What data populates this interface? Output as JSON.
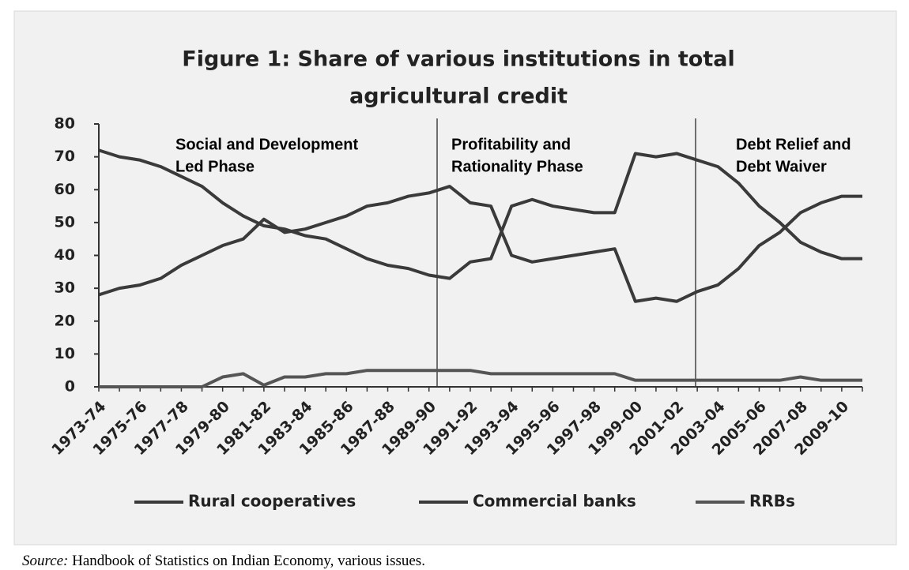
{
  "chart_data": {
    "type": "line",
    "title": [
      "Figure 1: Share of various institutions in total",
      "agricultural credit"
    ],
    "categories": [
      "1973-74",
      null,
      "1975-76",
      null,
      "1977-78",
      null,
      "1979-80",
      null,
      "1981-82",
      null,
      "1983-84",
      null,
      "1985-86",
      null,
      "1987-88",
      null,
      "1989-90",
      null,
      "1991-92",
      null,
      "1993-94",
      null,
      "1995-96",
      null,
      "1997-98",
      null,
      "1999-00",
      null,
      "2001-02",
      null,
      "2003-04",
      null,
      "2005-06",
      null,
      "2007-08",
      null,
      "2009-10",
      null
    ],
    "series": [
      {
        "name": "Rural cooperatives",
        "color": "#3a3a3a",
        "values": [
          72,
          70,
          69,
          67,
          64,
          61,
          56,
          52,
          49,
          48,
          46,
          45,
          42,
          39,
          37,
          36,
          34,
          33,
          38,
          39,
          55,
          57,
          55,
          54,
          53,
          53,
          71,
          70,
          71,
          69,
          67,
          62,
          55,
          50,
          44,
          41,
          39,
          39
        ]
      },
      {
        "name": "Commercial banks",
        "color": "#3a3a3a",
        "values": [
          28,
          30,
          31,
          33,
          37,
          40,
          43,
          45,
          51,
          47,
          48,
          50,
          52,
          55,
          56,
          58,
          59,
          61,
          56,
          55,
          40,
          38,
          39,
          40,
          41,
          42,
          26,
          27,
          26,
          29,
          31,
          36,
          43,
          47,
          53,
          56,
          58,
          58
        ]
      },
      {
        "name": "RRBs",
        "color": "#555555",
        "values": [
          0,
          0,
          0,
          0,
          0,
          0,
          3,
          4,
          0.5,
          3,
          3,
          4,
          4,
          5,
          5,
          5,
          5,
          5,
          5,
          4,
          4,
          4,
          4,
          4,
          4,
          4,
          2,
          2,
          2,
          2,
          2,
          2,
          2,
          2,
          3,
          2,
          2,
          2
        ]
      }
    ],
    "ylim": [
      0,
      80
    ],
    "yticks": [
      0,
      10,
      20,
      30,
      40,
      50,
      60,
      70,
      80
    ],
    "grid": false,
    "legend": "bottom",
    "annotations": [
      [
        "Social and Development",
        "Led Phase"
      ],
      [
        "Profitability and",
        "Rationality Phase"
      ],
      [
        "Debt Relief and",
        "Debt Waiver"
      ]
    ]
  },
  "source": {
    "label": "Source:",
    "text": " Handbook of Statistics on Indian Economy, various issues."
  }
}
